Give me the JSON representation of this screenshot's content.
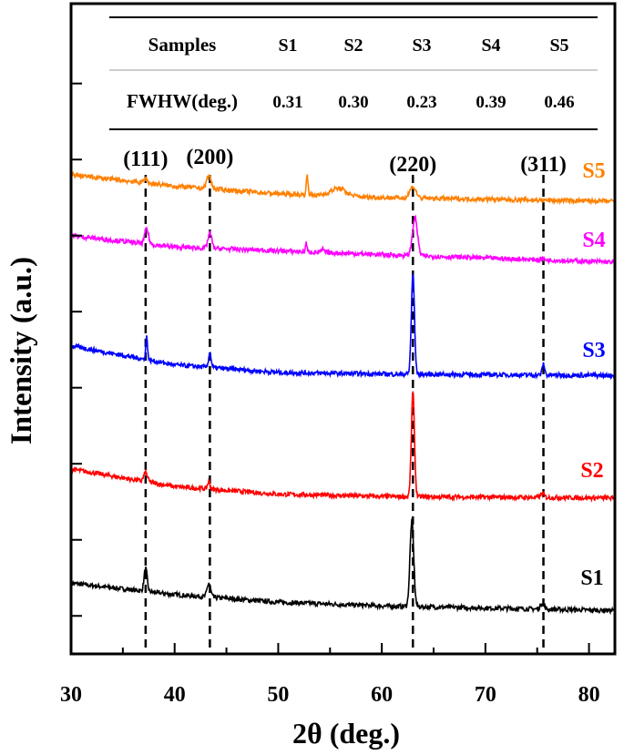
{
  "chart_data": {
    "type": "line",
    "xlabel": "2θ (deg.)",
    "ylabel": "Intensity (a.u.)",
    "xlim": [
      30,
      82.5
    ],
    "ylim": [
      0,
      8.55
    ],
    "x_ticks": [
      30,
      40,
      50,
      60,
      70,
      80
    ],
    "x_minor_ticks": [
      35,
      45,
      55,
      65,
      75
    ],
    "y_ticks": [
      0.5,
      1.5,
      2.5,
      3.5,
      4.5,
      5.5,
      6.5,
      7.5
    ],
    "grid": false,
    "series": [
      {
        "name": "S1",
        "color": "#000000",
        "baseline": [
          [
            30,
            0.93
          ],
          [
            40,
            0.78
          ],
          [
            50,
            0.68
          ],
          [
            60,
            0.63
          ],
          [
            82.5,
            0.57
          ]
        ],
        "peaks": [
          [
            37.2,
            0.3,
            0.25
          ],
          [
            43.3,
            0.18,
            0.28
          ],
          [
            62.9,
            1.13,
            0.3
          ],
          [
            75.5,
            0.08,
            0.3
          ]
        ]
      },
      {
        "name": "S2",
        "color": "#ff0000",
        "baseline": [
          [
            30,
            2.43
          ],
          [
            40,
            2.2
          ],
          [
            50,
            2.1
          ],
          [
            60,
            2.07
          ],
          [
            82.5,
            2.05
          ]
        ],
        "peaks": [
          [
            37.2,
            0.12,
            0.3
          ],
          [
            43.3,
            0.1,
            0.2
          ],
          [
            63.0,
            1.37,
            0.25
          ],
          [
            75.5,
            0.05,
            0.3
          ]
        ]
      },
      {
        "name": "S3",
        "color": "#0000ff",
        "baseline": [
          [
            30,
            4.05
          ],
          [
            40,
            3.8
          ],
          [
            50,
            3.7
          ],
          [
            60,
            3.68
          ],
          [
            82.5,
            3.66
          ]
        ],
        "peaks": [
          [
            37.3,
            0.3,
            0.15
          ],
          [
            43.4,
            0.2,
            0.2
          ],
          [
            63.0,
            1.32,
            0.25
          ],
          [
            75.6,
            0.15,
            0.2
          ]
        ]
      },
      {
        "name": "S4",
        "color": "#ff00ff",
        "baseline": [
          [
            30,
            5.5
          ],
          [
            40,
            5.35
          ],
          [
            50,
            5.3
          ],
          [
            60,
            5.25
          ],
          [
            82.5,
            5.15
          ]
        ],
        "peaks": [
          [
            37.3,
            0.2,
            0.3
          ],
          [
            43.4,
            0.2,
            0.3
          ],
          [
            52.7,
            0.12,
            0.12
          ],
          [
            54.3,
            0.04,
            0.2
          ],
          [
            63.2,
            0.5,
            0.4
          ],
          [
            75.5,
            0.02,
            0.3
          ]
        ]
      },
      {
        "name": "S5",
        "color": "#ff8000",
        "baseline": [
          [
            30,
            6.3
          ],
          [
            40,
            6.15
          ],
          [
            50,
            6.05
          ],
          [
            60,
            6.0
          ],
          [
            82.5,
            5.95
          ]
        ],
        "peaks": [
          [
            37.2,
            0.06,
            0.3
          ],
          [
            43.3,
            0.17,
            0.35
          ],
          [
            52.8,
            0.25,
            0.15
          ],
          [
            55.8,
            0.1,
            1.2
          ],
          [
            63.0,
            0.15,
            0.5
          ]
        ]
      }
    ],
    "reflections": [
      {
        "label": "(111)",
        "x": 37.2
      },
      {
        "label": "(200)",
        "x": 43.4
      },
      {
        "label": "(220)",
        "x": 63.0
      },
      {
        "label": "(311)",
        "x": 75.6
      }
    ],
    "table": {
      "header": [
        "Samples",
        "S1",
        "S2",
        "S3",
        "S4",
        "S5"
      ],
      "row": [
        "FWHW(deg.)",
        "0.31",
        "0.30",
        "0.23",
        "0.39",
        "0.46"
      ]
    }
  }
}
